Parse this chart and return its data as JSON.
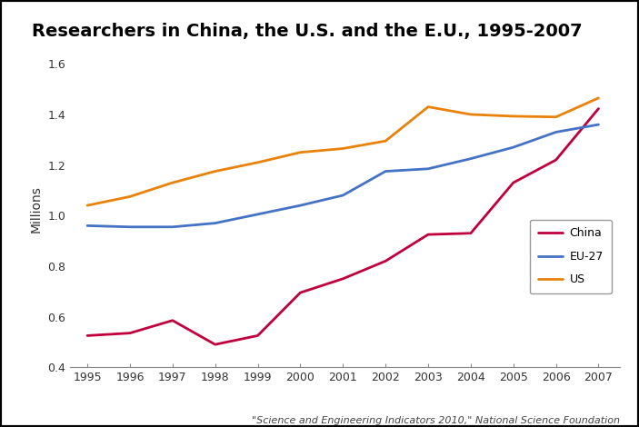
{
  "title": "Researchers in China, the U.S. and the E.U., 1995-2007",
  "ylabel": "Millions",
  "years": [
    1995,
    1996,
    1997,
    1998,
    1999,
    2000,
    2001,
    2002,
    2003,
    2004,
    2005,
    2006,
    2007
  ],
  "china": [
    0.525,
    0.535,
    0.585,
    0.49,
    0.525,
    0.695,
    0.75,
    0.82,
    0.925,
    0.93,
    1.13,
    1.22,
    1.423
  ],
  "eu27": [
    0.96,
    0.955,
    0.955,
    0.97,
    1.005,
    1.04,
    1.08,
    1.175,
    1.185,
    1.225,
    1.27,
    1.33,
    1.36
  ],
  "us": [
    1.04,
    1.075,
    1.13,
    1.175,
    1.21,
    1.25,
    1.265,
    1.295,
    1.43,
    1.4,
    1.393,
    1.39,
    1.465
  ],
  "china_color": "#C0003C",
  "eu27_color": "#4472C4",
  "us_color": "#E8820A",
  "ylim": [
    0.4,
    1.65
  ],
  "yticks": [
    0.4,
    0.6,
    0.8,
    1.0,
    1.2,
    1.4,
    1.6
  ],
  "footnote": "\"Science and Engineering Indicators 2010,\" National Science Foundation",
  "title_fontsize": 14,
  "axis_fontsize": 9,
  "legend_fontsize": 9,
  "background_color": "#FFFFFF",
  "border_color": "#000000",
  "tick_color": "#555555"
}
